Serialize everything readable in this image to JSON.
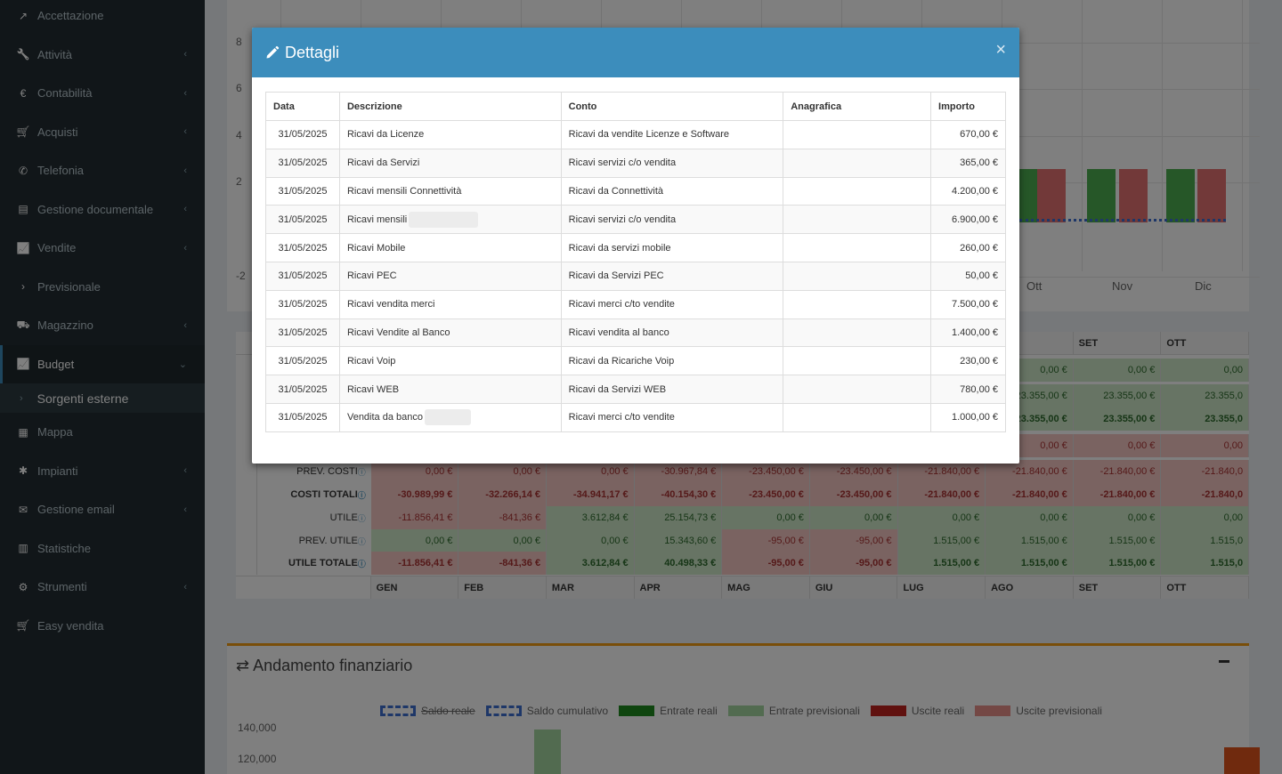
{
  "sidebar": {
    "items": [
      {
        "label": "Accettazione",
        "icon": "external-link-icon",
        "has_children": false
      },
      {
        "label": "Attività",
        "icon": "wrench-icon",
        "has_children": true
      },
      {
        "label": "Contabilità",
        "icon": "euro-icon",
        "has_children": true
      },
      {
        "label": "Acquisti",
        "icon": "cart-icon",
        "has_children": true
      },
      {
        "label": "Telefonia",
        "icon": "phone-icon",
        "has_children": true
      },
      {
        "label": "Gestione documentale",
        "icon": "document-icon",
        "has_children": true
      },
      {
        "label": "Vendite",
        "icon": "line-chart-icon",
        "has_children": true
      },
      {
        "label": "Previsionale",
        "icon": "chevron-right-icon",
        "has_children": false
      },
      {
        "label": "Magazzino",
        "icon": "truck-icon",
        "has_children": true
      },
      {
        "label": "Budget",
        "icon": "line-chart-icon",
        "has_children": true,
        "active": true
      }
    ],
    "submenu": {
      "label": "Sorgenti esterne"
    },
    "items_after": [
      {
        "label": "Mappa",
        "icon": "map-icon",
        "has_children": false
      },
      {
        "label": "Impianti",
        "icon": "puzzle-icon",
        "has_children": true
      },
      {
        "label": "Gestione email",
        "icon": "envelope-icon",
        "has_children": true
      },
      {
        "label": "Statistiche",
        "icon": "bar-chart-icon",
        "has_children": false
      },
      {
        "label": "Strumenti",
        "icon": "cog-icon",
        "has_children": true
      },
      {
        "label": "Easy vendita",
        "icon": "cart-icon",
        "has_children": false
      }
    ]
  },
  "background": {
    "chart_top": {
      "y_labels": [
        "8",
        "6",
        "4",
        "2",
        "-2"
      ],
      "months_visible": [
        "Ott",
        "Nov",
        "Dic"
      ]
    },
    "table": {
      "months_top": [
        "O",
        "SET",
        "OTT"
      ],
      "rows": [
        {
          "label": "",
          "values": [
            "0,00 €",
            "0,00 €",
            "0,00"
          ],
          "tone": "g"
        },
        {
          "label": "",
          "values": [
            "23.355,00 €",
            "23.355,00 €",
            "23.355,0"
          ],
          "tone": "g"
        },
        {
          "label": "",
          "values": [
            "23.355,00 €",
            "23.355,00 €",
            "23.355,0"
          ],
          "tone": "g",
          "bold": true
        },
        {
          "label": "",
          "values": [
            "0,00 €",
            "0,00 €",
            "0,00"
          ],
          "tone": "r"
        }
      ],
      "full_rows": [
        {
          "label": "PREV. COSTI",
          "values": [
            "0,00 €",
            "0,00 €",
            "0,00 €",
            "-30.967,84 €",
            "-23.450,00 €",
            "-23.450,00 €",
            "-21.840,00 €",
            "-21.840,00 €",
            "-21.840,00 €",
            "-21.840,0"
          ],
          "tones": [
            "r",
            "r",
            "r",
            "r",
            "r",
            "r",
            "r",
            "r",
            "r",
            "r"
          ]
        },
        {
          "label": "COSTI TOTALI",
          "bold": true,
          "values": [
            "-30.989,99 €",
            "-32.266,14 €",
            "-34.941,17 €",
            "-40.154,30 €",
            "-23.450,00 €",
            "-23.450,00 €",
            "-21.840,00 €",
            "-21.840,00 €",
            "-21.840,00 €",
            "-21.840,0"
          ],
          "tones": [
            "r",
            "r",
            "r",
            "r",
            "r",
            "r",
            "r",
            "r",
            "r",
            "r"
          ]
        },
        {
          "label": "UTILE",
          "values": [
            "-11.856,41 €",
            "-841,36 €",
            "3.612,84 €",
            "25.154,73 €",
            "0,00 €",
            "0,00 €",
            "0,00 €",
            "0,00 €",
            "0,00 €",
            "0,00"
          ],
          "tones": [
            "r",
            "r",
            "g",
            "g",
            "g",
            "g",
            "g",
            "g",
            "g",
            "g"
          ]
        },
        {
          "label": "PREV. UTILE",
          "values": [
            "0,00 €",
            "0,00 €",
            "0,00 €",
            "15.343,60 €",
            "-95,00 €",
            "-95,00 €",
            "1.515,00 €",
            "1.515,00 €",
            "1.515,00 €",
            "1.515,0"
          ],
          "tones": [
            "g",
            "g",
            "g",
            "g",
            "r",
            "r",
            "g",
            "g",
            "g",
            "g"
          ]
        },
        {
          "label": "UTILE TOTALE",
          "bold": true,
          "values": [
            "-11.856,41 €",
            "-841,36 €",
            "3.612,84 €",
            "40.498,33 €",
            "-95,00 €",
            "-95,00 €",
            "1.515,00 €",
            "1.515,00 €",
            "1.515,00 €",
            "1.515,0"
          ],
          "tones": [
            "r",
            "r",
            "g",
            "g",
            "r",
            "r",
            "g",
            "g",
            "g",
            "g"
          ]
        }
      ],
      "months_bottom": [
        "GEN",
        "FEB",
        "MAR",
        "APR",
        "MAG",
        "GIU",
        "LUG",
        "AGO",
        "SET",
        "OTT"
      ]
    },
    "financial": {
      "title": "Andamento finanziario",
      "legend": [
        {
          "label": "Saldo reale",
          "style": "dashed",
          "color": "#3c6fd1"
        },
        {
          "label": "Saldo cumulativo",
          "style": "dashed",
          "color": "#3c6fd1"
        },
        {
          "label": "Entrate reali",
          "color": "#1f8a1f"
        },
        {
          "label": "Entrate previsionali",
          "color": "#a5d6a0"
        },
        {
          "label": "Uscite reali",
          "color": "#c0231e"
        },
        {
          "label": "Uscite previsionali",
          "color": "#e8908b"
        }
      ],
      "y_labels": [
        "140,000",
        "120,000"
      ]
    }
  },
  "modal": {
    "title": "Dettagli",
    "close_label": "×",
    "columns": [
      "Data",
      "Descrizione",
      "Conto",
      "Anagrafica",
      "Importo"
    ],
    "rows": [
      {
        "data": "31/05/2025",
        "descrizione": "Ricavi da Licenze",
        "conto": "Ricavi da vendite Licenze e Software",
        "anagrafica": "",
        "importo": "670,00 €"
      },
      {
        "data": "31/05/2025",
        "descrizione": "Ricavi da Servizi",
        "conto": "Ricavi servizi c/o vendita",
        "anagrafica": "",
        "importo": "365,00 €"
      },
      {
        "data": "31/05/2025",
        "descrizione": "Ricavi mensili Connettività",
        "conto": "Ricavi da Connettività",
        "anagrafica": "",
        "importo": "4.200,00 €"
      },
      {
        "data": "31/05/2025",
        "descrizione": "Ricavi mensili",
        "blurred": 78,
        "conto": "Ricavi servizi c/o vendita",
        "anagrafica": "",
        "importo": "6.900,00 €"
      },
      {
        "data": "31/05/2025",
        "descrizione": "Ricavi Mobile",
        "conto": "Ricavi da servizi mobile",
        "anagrafica": "",
        "importo": "260,00 €"
      },
      {
        "data": "31/05/2025",
        "descrizione": "Ricavi PEC",
        "conto": "Ricavi da Servizi PEC",
        "anagrafica": "",
        "importo": "50,00 €"
      },
      {
        "data": "31/05/2025",
        "descrizione": "Ricavi vendita merci",
        "conto": "Ricavi merci c/to vendite",
        "anagrafica": "",
        "importo": "7.500,00 €"
      },
      {
        "data": "31/05/2025",
        "descrizione": "Ricavi Vendite al Banco",
        "conto": "Ricavi vendita al banco",
        "anagrafica": "",
        "importo": "1.400,00 €"
      },
      {
        "data": "31/05/2025",
        "descrizione": "Ricavi Voip",
        "conto": "Ricavi da Ricariche Voip",
        "anagrafica": "",
        "importo": "230,00 €"
      },
      {
        "data": "31/05/2025",
        "descrizione": "Ricavi WEB",
        "conto": "Ricavi da Servizi WEB",
        "anagrafica": "",
        "importo": "780,00 €"
      },
      {
        "data": "31/05/2025",
        "descrizione": "Vendita da banco",
        "blurred": 52,
        "conto": "Ricavi merci c/to vendite",
        "anagrafica": "",
        "importo": "1.000,00 €"
      }
    ]
  }
}
